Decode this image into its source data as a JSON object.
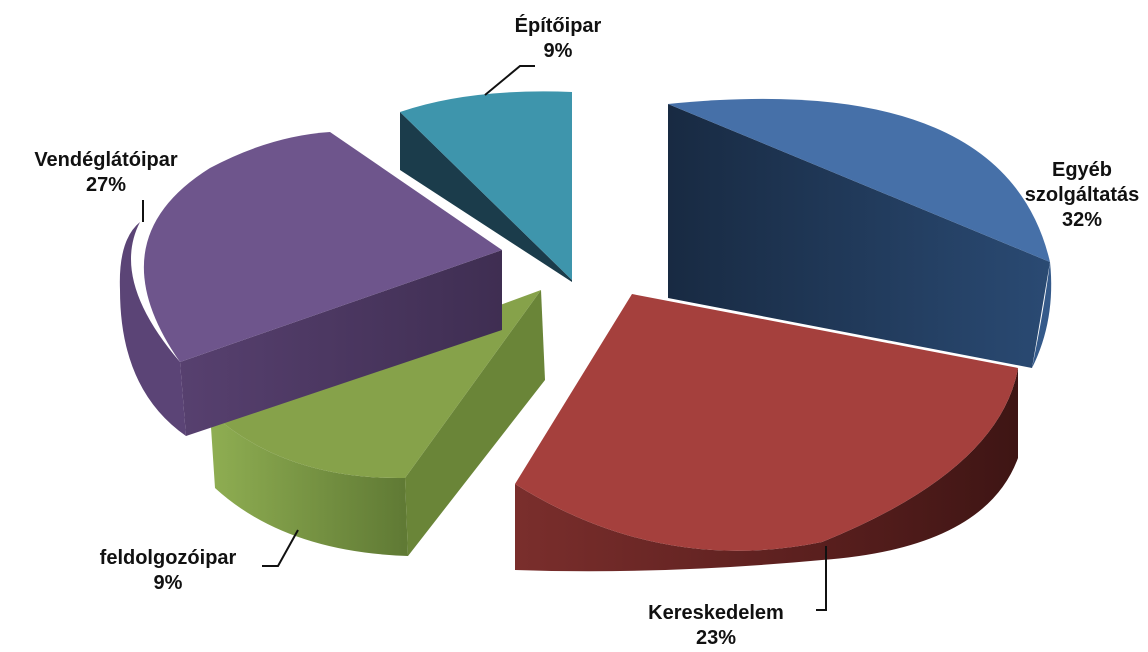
{
  "chart_data": {
    "type": "pie",
    "title": "",
    "slices": [
      {
        "label": "Egyéb szolgáltatás",
        "value": 32,
        "value_label": "32%",
        "color": "#4670A8"
      },
      {
        "label": "Kereskedelem",
        "value": 23,
        "value_label": "23%",
        "color": "#A5403D"
      },
      {
        "label": "feldolgozóipar",
        "value": 9,
        "value_label": "9%",
        "color": "#86A24A"
      },
      {
        "label": "Vendéglátóipar",
        "value": 27,
        "value_label": "27%",
        "color": "#6E558C"
      },
      {
        "label": "Építőipar",
        "value": 9,
        "value_label": "9%",
        "color": "#3E95AC"
      }
    ],
    "style": "3d-exploded",
    "legend": "none",
    "data_labels": "outside-with-leader-lines"
  }
}
